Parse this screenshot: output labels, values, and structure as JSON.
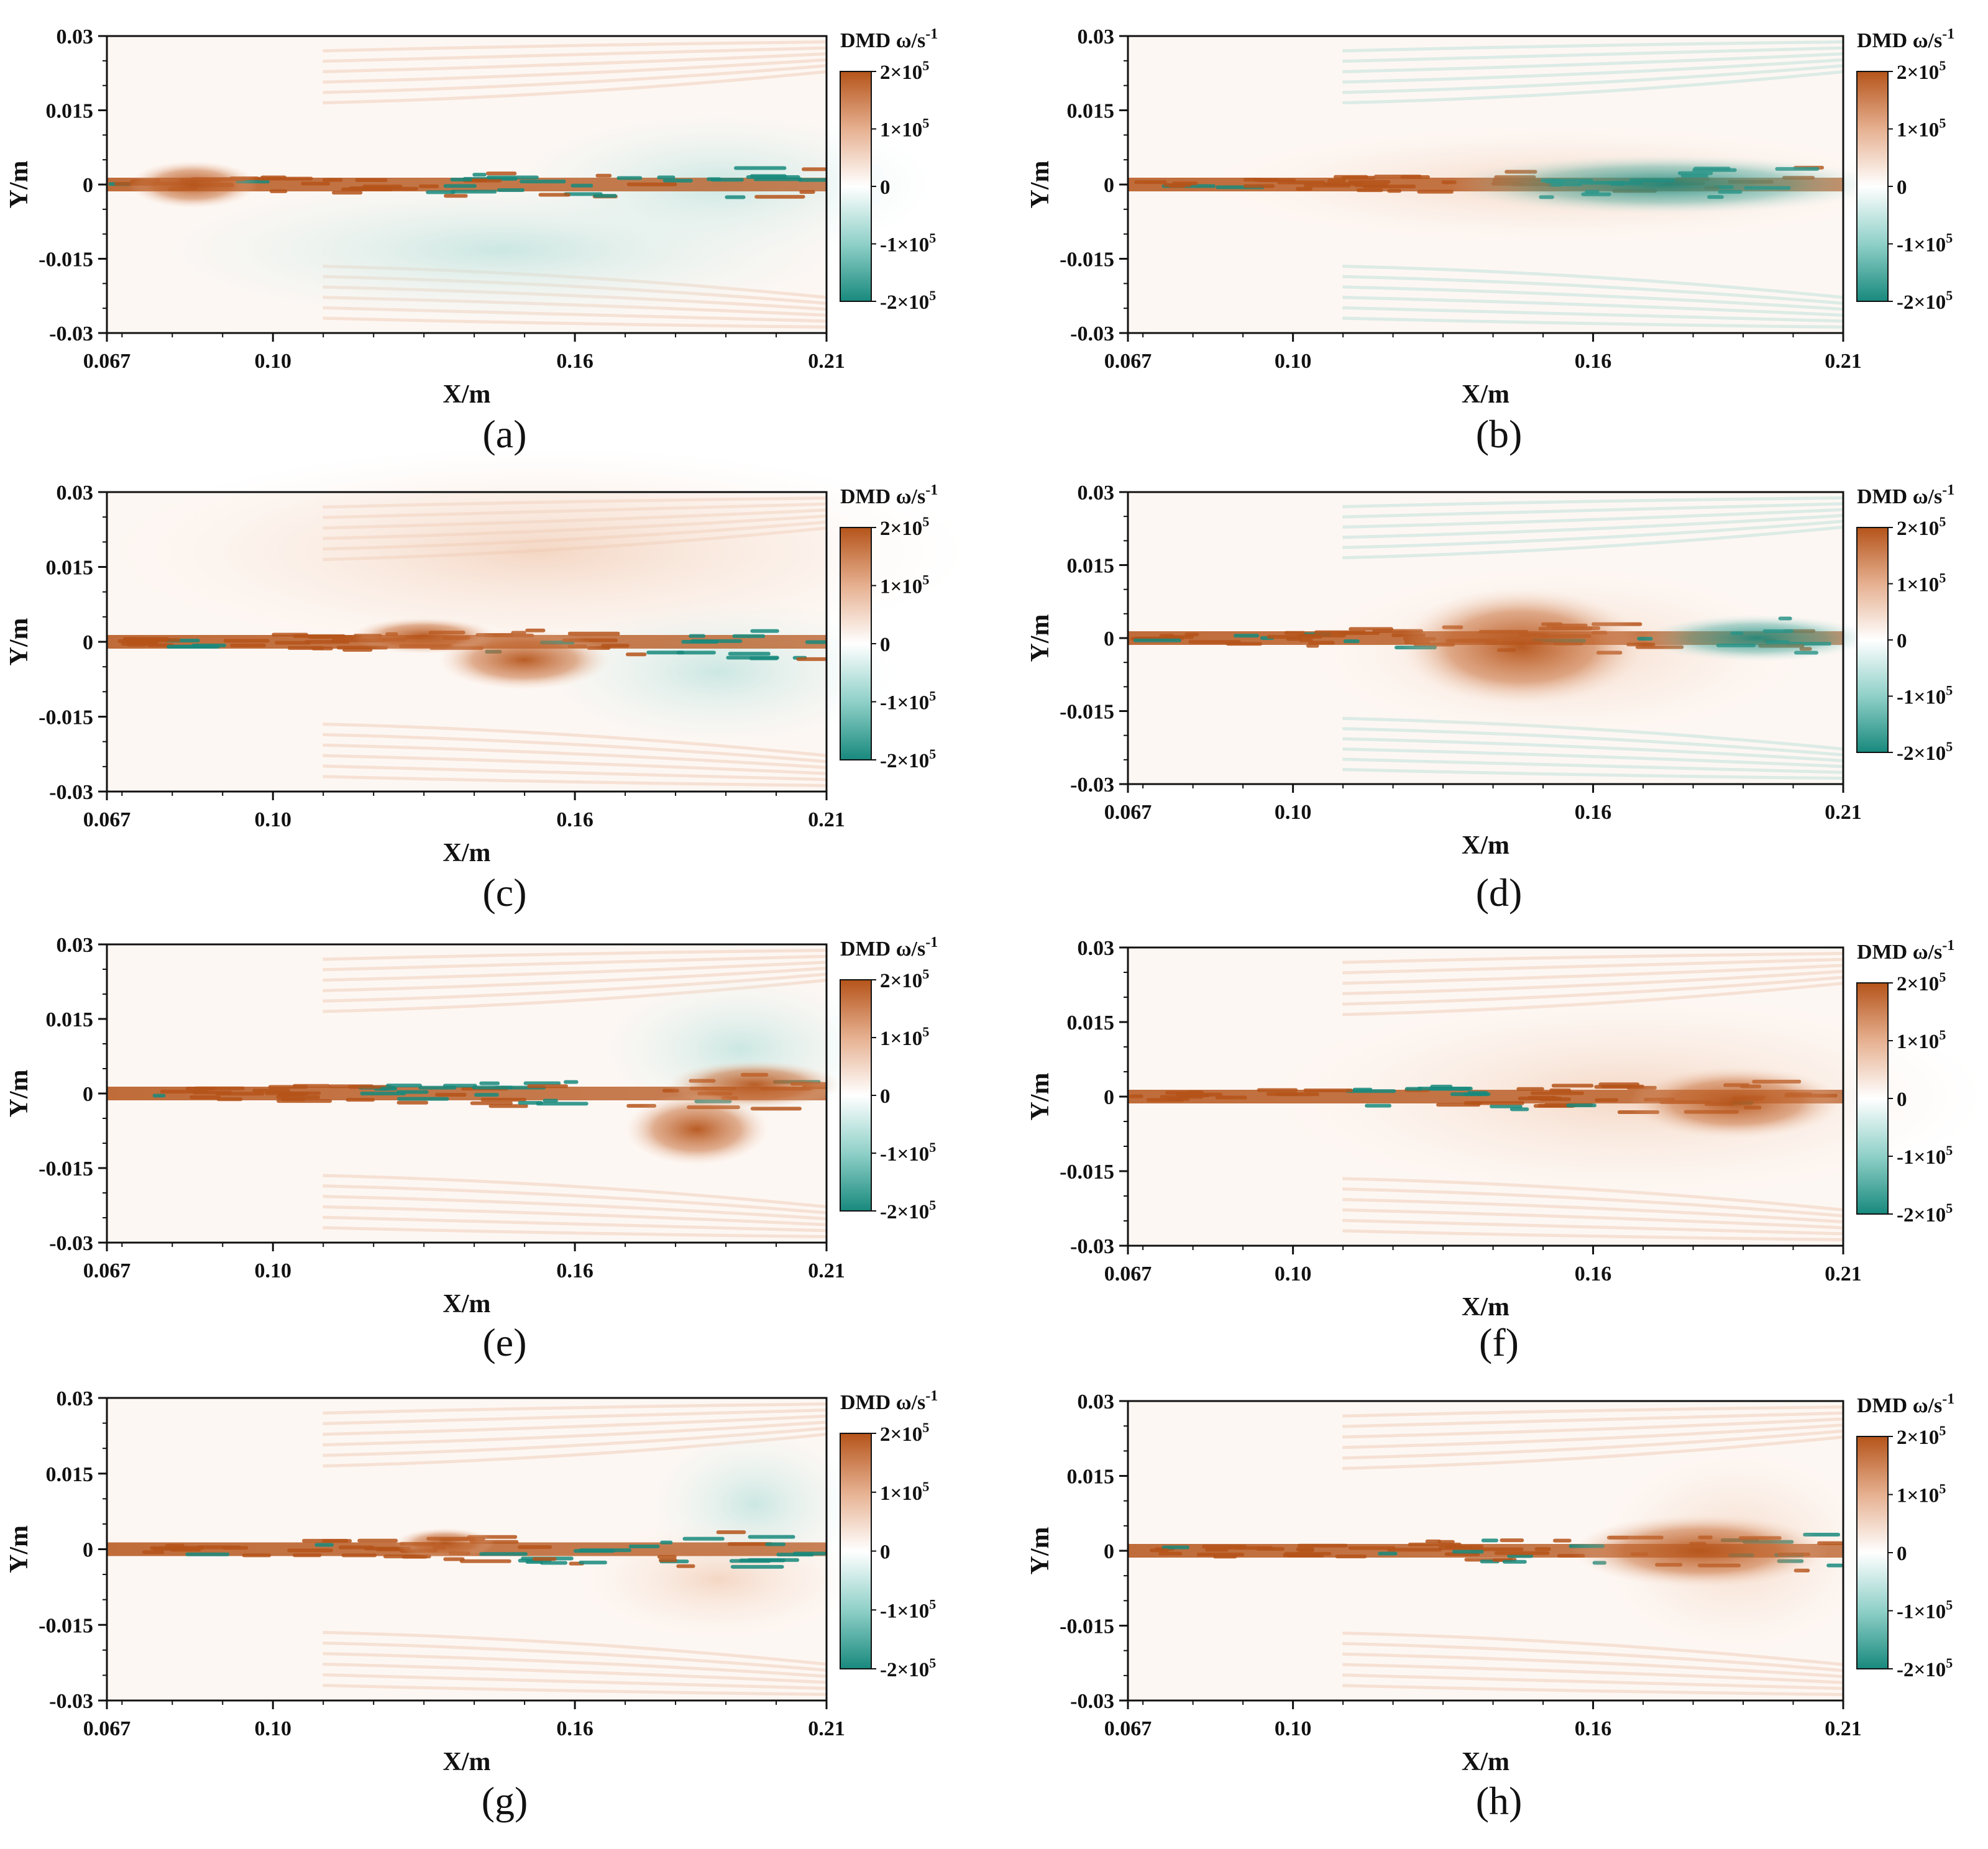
{
  "figure": {
    "colors": {
      "positive": "#b5541a",
      "mid": "#ffffff",
      "negative": "#18897d",
      "axis": "#111111"
    }
  },
  "chart_data": [
    {
      "panel_label": "(a)",
      "type": "heatmap",
      "colorbar_title": "DMD ω/s",
      "colorbar_superscript": "-1",
      "colorbar_ticks": [
        "2×10",
        "1×10",
        "0",
        "-1×10",
        "-2×10"
      ],
      "colorbar_exponents": [
        "5",
        "5",
        "",
        "5",
        "5"
      ],
      "xlabel": "X/m",
      "ylabel": "Y/m",
      "xlim": [
        0.067,
        0.21
      ],
      "ylim": [
        -0.03,
        0.03
      ],
      "xticks": [
        0.067,
        0.1,
        0.16,
        0.21
      ],
      "xtick_labels": [
        "0.067",
        "0.10",
        "0.16",
        "0.21"
      ],
      "yticks": [
        0.03,
        0.015,
        0,
        -0.015,
        -0.03
      ],
      "ytick_labels": [
        "0.03",
        "0.015",
        "0",
        "-0.015",
        "-0.03"
      ],
      "clim": [
        -200000,
        200000
      ]
    },
    {
      "panel_label": "(b)",
      "type": "heatmap",
      "colorbar_title": "DMD ω/s",
      "colorbar_superscript": "-1",
      "colorbar_ticks": [
        "2×10",
        "1×10",
        "0",
        "-1×10",
        "-2×10"
      ],
      "colorbar_exponents": [
        "5",
        "5",
        "",
        "5",
        "5"
      ],
      "xlabel": "X/m",
      "ylabel": "Y/m",
      "xlim": [
        0.067,
        0.21
      ],
      "ylim": [
        -0.03,
        0.03
      ],
      "xticks": [
        0.067,
        0.1,
        0.16,
        0.21
      ],
      "xtick_labels": [
        "0.067",
        "0.10",
        "0.16",
        "0.21"
      ],
      "yticks": [
        0.03,
        0.015,
        0,
        -0.015,
        -0.03
      ],
      "ytick_labels": [
        "0.03",
        "0.015",
        "0",
        "-0.015",
        "-0.03"
      ],
      "clim": [
        -200000,
        200000
      ]
    },
    {
      "panel_label": "(c)",
      "type": "heatmap",
      "colorbar_title": "DMD ω/s",
      "colorbar_superscript": "-1",
      "colorbar_ticks": [
        "2×10",
        "1×10",
        "0",
        "-1×10",
        "-2×10"
      ],
      "colorbar_exponents": [
        "5",
        "5",
        "",
        "5",
        "5"
      ],
      "xlabel": "X/m",
      "ylabel": "Y/m",
      "xlim": [
        0.067,
        0.21
      ],
      "ylim": [
        -0.03,
        0.03
      ],
      "xticks": [
        0.067,
        0.1,
        0.16,
        0.21
      ],
      "xtick_labels": [
        "0.067",
        "0.10",
        "0.16",
        "0.21"
      ],
      "yticks": [
        0.03,
        0.015,
        0,
        -0.015,
        -0.03
      ],
      "ytick_labels": [
        "0.03",
        "0.015",
        "0",
        "-0.015",
        "-0.03"
      ],
      "clim": [
        -200000,
        200000
      ]
    },
    {
      "panel_label": "(d)",
      "type": "heatmap",
      "colorbar_title": "DMD ω/s",
      "colorbar_superscript": "-1",
      "colorbar_ticks": [
        "2×10",
        "1×10",
        "0",
        "-1×10",
        "-2×10"
      ],
      "colorbar_exponents": [
        "5",
        "5",
        "",
        "5",
        "5"
      ],
      "xlabel": "X/m",
      "ylabel": "Y/m",
      "xlim": [
        0.067,
        0.21
      ],
      "ylim": [
        -0.03,
        0.03
      ],
      "xticks": [
        0.067,
        0.1,
        0.16,
        0.21
      ],
      "xtick_labels": [
        "0.067",
        "0.10",
        "0.16",
        "0.21"
      ],
      "yticks": [
        0.03,
        0.015,
        0,
        -0.015,
        -0.03
      ],
      "ytick_labels": [
        "0.03",
        "0.015",
        "0",
        "-0.015",
        "-0.03"
      ],
      "clim": [
        -200000,
        200000
      ]
    },
    {
      "panel_label": "(e)",
      "type": "heatmap",
      "colorbar_title": "DMD ω/s",
      "colorbar_superscript": "-1",
      "colorbar_ticks": [
        "2×10",
        "1×10",
        "0",
        "-1×10",
        "-2×10"
      ],
      "colorbar_exponents": [
        "5",
        "5",
        "",
        "5",
        "5"
      ],
      "xlabel": "X/m",
      "ylabel": "Y/m",
      "xlim": [
        0.067,
        0.21
      ],
      "ylim": [
        -0.03,
        0.03
      ],
      "xticks": [
        0.067,
        0.1,
        0.16,
        0.21
      ],
      "xtick_labels": [
        "0.067",
        "0.10",
        "0.16",
        "0.21"
      ],
      "yticks": [
        0.03,
        0.015,
        0,
        -0.015,
        -0.03
      ],
      "ytick_labels": [
        "0.03",
        "0.015",
        "0",
        "-0.015",
        "-0.03"
      ],
      "clim": [
        -200000,
        200000
      ]
    },
    {
      "panel_label": "(f)",
      "type": "heatmap",
      "colorbar_title": "DMD ω/s",
      "colorbar_superscript": "-1",
      "colorbar_ticks": [
        "2×10",
        "1×10",
        "0",
        "-1×10",
        "-2×10"
      ],
      "colorbar_exponents": [
        "5",
        "5",
        "",
        "5",
        "5"
      ],
      "xlabel": "X/m",
      "ylabel": "Y/m",
      "xlim": [
        0.067,
        0.21
      ],
      "ylim": [
        -0.03,
        0.03
      ],
      "xticks": [
        0.067,
        0.1,
        0.16,
        0.21
      ],
      "xtick_labels": [
        "0.067",
        "0.10",
        "0.16",
        "0.21"
      ],
      "yticks": [
        0.03,
        0.015,
        0,
        -0.015,
        -0.03
      ],
      "ytick_labels": [
        "0.03",
        "0.015",
        "0",
        "-0.015",
        "-0.03"
      ],
      "clim": [
        -200000,
        200000
      ]
    },
    {
      "panel_label": "(g)",
      "type": "heatmap",
      "colorbar_title": "DMD ω/s",
      "colorbar_superscript": "-1",
      "colorbar_ticks": [
        "2×10",
        "1×10",
        "0",
        "-1×10",
        "-2×10"
      ],
      "colorbar_exponents": [
        "5",
        "5",
        "",
        "5",
        "5"
      ],
      "xlabel": "X/m",
      "ylabel": "Y/m",
      "xlim": [
        0.067,
        0.21
      ],
      "ylim": [
        -0.03,
        0.03
      ],
      "xticks": [
        0.067,
        0.1,
        0.16,
        0.21
      ],
      "xtick_labels": [
        "0.067",
        "0.10",
        "0.16",
        "0.21"
      ],
      "yticks": [
        0.03,
        0.015,
        0,
        -0.015,
        -0.03
      ],
      "ytick_labels": [
        "0.03",
        "0.015",
        "0",
        "-0.015",
        "-0.03"
      ],
      "clim": [
        -200000,
        200000
      ]
    },
    {
      "panel_label": "(h)",
      "type": "heatmap",
      "colorbar_title": "DMD ω/s",
      "colorbar_superscript": "-1",
      "colorbar_ticks": [
        "2×10",
        "1×10",
        "0",
        "-1×10",
        "-2×10"
      ],
      "colorbar_exponents": [
        "5",
        "5",
        "",
        "5",
        "5"
      ],
      "xlabel": "X/m",
      "ylabel": "Y/m",
      "xlim": [
        0.067,
        0.21
      ],
      "ylim": [
        -0.03,
        0.03
      ],
      "xticks": [
        0.067,
        0.1,
        0.16,
        0.21
      ],
      "xtick_labels": [
        "0.067",
        "0.10",
        "0.16",
        "0.21"
      ],
      "yticks": [
        0.03,
        0.015,
        0,
        -0.015,
        -0.03
      ],
      "ytick_labels": [
        "0.03",
        "0.015",
        "0",
        "-0.015",
        "-0.03"
      ],
      "clim": [
        -200000,
        200000
      ]
    }
  ]
}
